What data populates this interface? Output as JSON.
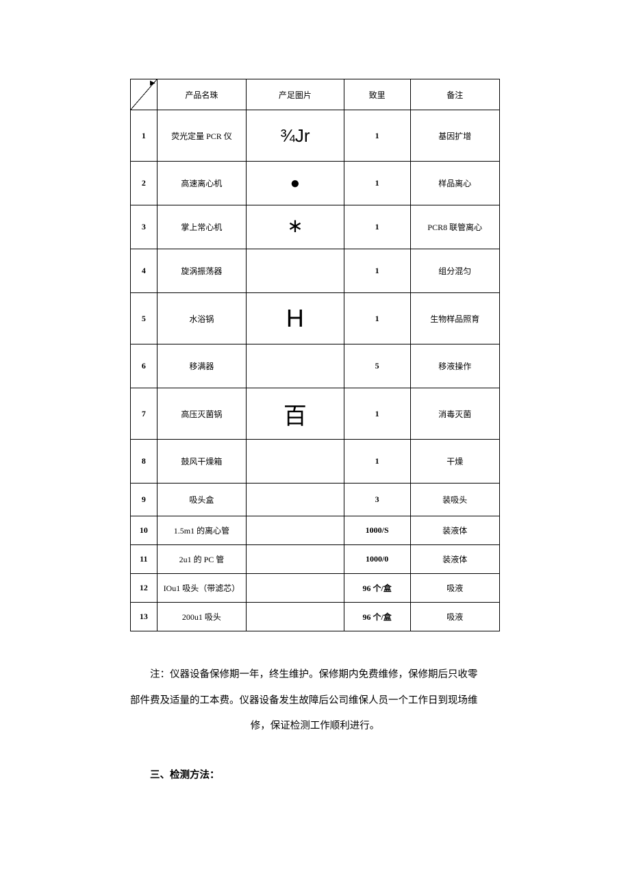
{
  "table": {
    "headers": {
      "product_name": "产品名珠",
      "product_image": "产足圏片",
      "quantity": "致里",
      "remark": "备注"
    },
    "rows": [
      {
        "num": "1",
        "name": "荧光定量 PCR 仪",
        "img": "¾Jr",
        "qty": "1",
        "note": "基因扩增",
        "img_class": "img-text-lg",
        "row_class": "row-tall"
      },
      {
        "num": "2",
        "name": "高速离心机",
        "img": "●",
        "qty": "1",
        "note": "样品离心",
        "img_class": "img-dot",
        "row_class": "row-med"
      },
      {
        "num": "3",
        "name": "掌上常心机",
        "img": "∗",
        "qty": "1",
        "note": "PCR8 联管离心",
        "img_class": "img-star",
        "row_class": "row-med"
      },
      {
        "num": "4",
        "name": "旋涡振荡器",
        "img": "",
        "qty": "1",
        "note": "组分混匀",
        "img_class": "",
        "row_class": "row-med"
      },
      {
        "num": "5",
        "name": "水浴锅",
        "img": "H",
        "qty": "1",
        "note": "生物样品照育",
        "img_class": "img-h",
        "row_class": "row-tall"
      },
      {
        "num": "6",
        "name": "移满器",
        "img": "",
        "qty": "5",
        "note": "移液操作",
        "img_class": "",
        "row_class": "row-med"
      },
      {
        "num": "7",
        "name": "高压灭菌锅",
        "img": "百",
        "qty": "1",
        "note": "消毒灭菌",
        "img_class": "img-bai",
        "row_class": "row-tall"
      },
      {
        "num": "8",
        "name": "鼓风干燥箱",
        "img": "",
        "qty": "1",
        "note": "干燥",
        "img_class": "",
        "row_class": "row-med"
      },
      {
        "num": "9",
        "name": "吸头盒",
        "img": "",
        "qty": "3",
        "note": "装吸头",
        "img_class": "",
        "row_class": "row-short"
      },
      {
        "num": "10",
        "name": "1.5m1 的离心管",
        "img": "",
        "qty": "1000/S",
        "note": "装液体",
        "img_class": "",
        "row_class": "row-xs"
      },
      {
        "num": "11",
        "name": "2u1 的 PC 管",
        "img": "",
        "qty": "1000/0",
        "note": "装液体",
        "img_class": "",
        "row_class": "row-xs"
      },
      {
        "num": "12",
        "name": "IOu1 吸头（带滤芯）",
        "img": "",
        "qty": "96 个/盒",
        "note": "吸液",
        "img_class": "",
        "row_class": "row-xs"
      },
      {
        "num": "13",
        "name": "200u1 吸头",
        "img": "",
        "qty": "96 个/盒",
        "note": "吸液",
        "img_class": "",
        "row_class": "row-xs"
      }
    ]
  },
  "note": {
    "line1": "注：仪器设备保修期一年，终生维护。保修期内免费维修，保修期后只收零",
    "line2": "部件费及适量的工本费。仪器设备发生故障后公司维保人员一个工作日到现场维",
    "line3": "修，保证检测工作顺利进行。"
  },
  "section_heading": "三、检测方法："
}
